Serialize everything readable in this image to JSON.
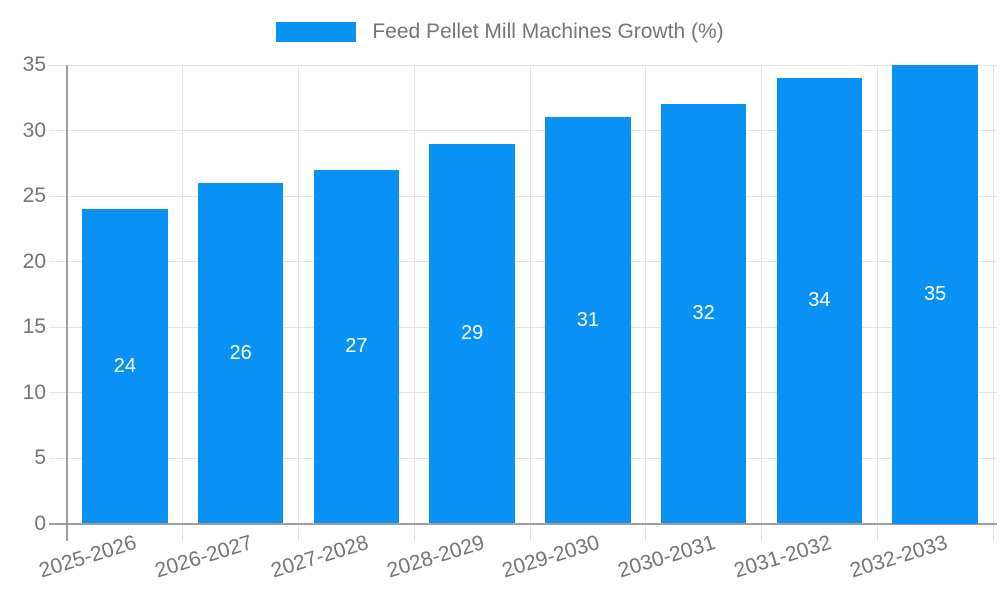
{
  "chart_data": {
    "type": "bar",
    "title": "Feed Pellet Mill Machines Growth (%)",
    "categories": [
      "2025-2026",
      "2026-2027",
      "2027-2028",
      "2028-2029",
      "2029-2030",
      "2030-2031",
      "2031-2032",
      "2032-2033"
    ],
    "series": [
      {
        "name": "Feed Pellet Mill Machines Growth (%)",
        "values": [
          24,
          26,
          27,
          29,
          31,
          32,
          34,
          35
        ]
      }
    ],
    "xlabel": "",
    "ylabel": "",
    "ylim": [
      0,
      35
    ],
    "ytick_step": 5,
    "yticks": [
      0,
      5,
      10,
      15,
      20,
      25,
      30,
      35
    ],
    "grid": true,
    "legend_position": "top",
    "bar_labels_visible": true,
    "bar_label_position": "center",
    "colors": {
      "bar": "#0991f5",
      "bar_label": "#ffffff",
      "axis_text": "#757575",
      "gridline": "#e3e3e3",
      "axis_line": "#9e9e9e",
      "background": "#ffffff"
    }
  }
}
